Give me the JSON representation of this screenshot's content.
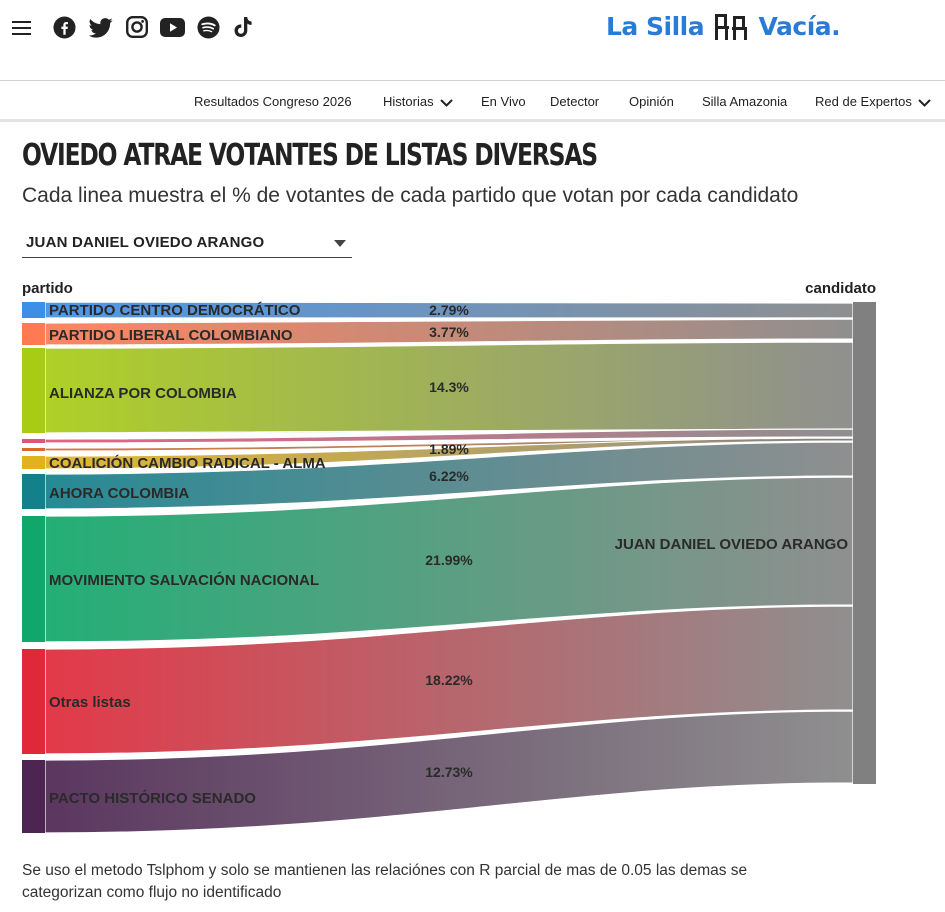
{
  "header": {
    "menu_icon": "hamburger-menu-icon",
    "social_icons": [
      "facebook-icon",
      "twitter-icon",
      "instagram-icon",
      "youtube-icon",
      "spotify-icon",
      "tiktok-icon"
    ],
    "logo_left": "La Silla",
    "logo_right": "Vacía.",
    "logo_color": "#2a7bd6"
  },
  "nav": {
    "items": [
      {
        "label": "Resultados Congreso 2026",
        "dropdown": false
      },
      {
        "label": "Historias",
        "dropdown": true
      },
      {
        "label": "En Vivo",
        "dropdown": false
      },
      {
        "label": "Detector",
        "dropdown": false
      },
      {
        "label": "Opinión",
        "dropdown": false
      },
      {
        "label": "Silla Amazonia",
        "dropdown": false
      },
      {
        "label": "Red de Expertos",
        "dropdown": true
      }
    ]
  },
  "article": {
    "title": "OVIEDO ATRAE VOTANTES DE LISTAS DIVERSAS",
    "subtitle": "Cada linea muestra el % de votantes de cada partido que votan por cada candidato",
    "selected_candidate": "JUAN DANIEL OVIEDO ARANGO",
    "footnote": "Se uso el metodo Tslphom y solo se mantienen las relaciónes con R parcial de mas de 0.05 las demas se categorizan como flujo no identificado"
  },
  "chart_data": {
    "type": "sankey",
    "left_header": "partido",
    "right_header": "candidato",
    "target": {
      "name": "JUAN DANIEL OVIEDO ARANGO",
      "color": "#808080"
    },
    "flows": [
      {
        "source": "PARTIDO CENTRO DEMOCRÁTICO",
        "value_label": "2.79%",
        "color": "#3d8fe8"
      },
      {
        "source": "PARTIDO LIBERAL COLOMBIANO",
        "value_label": "3.77%",
        "color": "#ff7a52"
      },
      {
        "source": "ALIANZA POR COLOMBIA",
        "value_label": "14.3%",
        "color": "#a8cc14"
      },
      {
        "source": "",
        "value_label": "",
        "color": "#e3547c"
      },
      {
        "source": "",
        "value_label": "",
        "color": "#d96a2a"
      },
      {
        "source": "COALICIÓN CAMBIO RADICAL - ALMA",
        "value_label": "1.89%",
        "color": "#e0b21e"
      },
      {
        "source": "AHORA COLOMBIA",
        "value_label": "6.22%",
        "color": "#13808c"
      },
      {
        "source": "MOVIMIENTO SALVACIÓN NACIONAL",
        "value_label": "21.99%",
        "color": "#10a86a"
      },
      {
        "source": "Otras listas",
        "value_label": "18.22%",
        "color": "#e02838"
      },
      {
        "source": "PACTO HISTÓRICO SENADO",
        "value_label": "12.73%",
        "color": "#4d2552"
      }
    ]
  }
}
